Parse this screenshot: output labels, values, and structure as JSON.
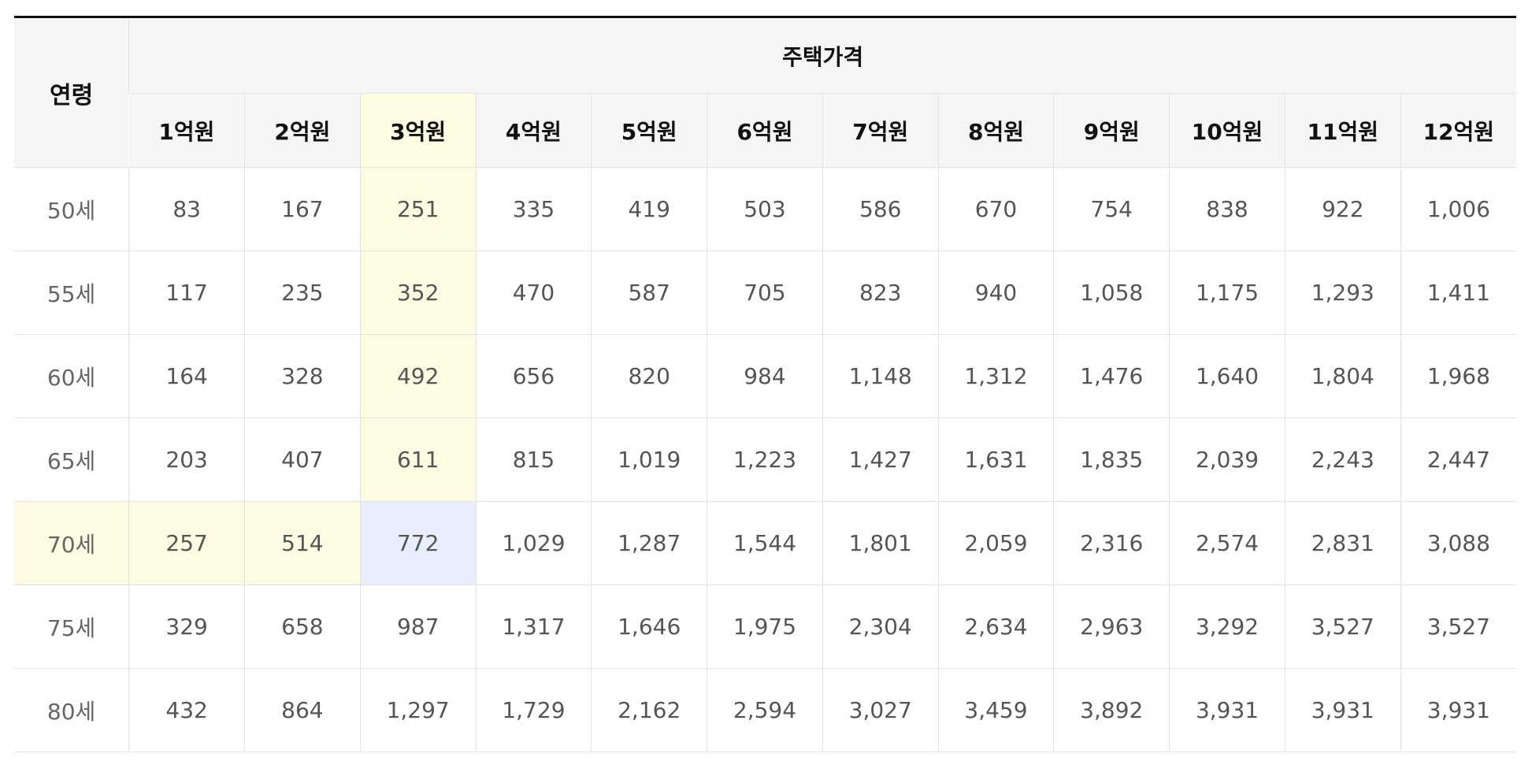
{
  "table": {
    "age_header": "연령",
    "price_header": "주택가격",
    "price_columns": [
      "1억원",
      "2억원",
      "3억원",
      "4억원",
      "5억원",
      "6억원",
      "7억원",
      "8억원",
      "9억원",
      "10억원",
      "11억원",
      "12억원"
    ],
    "rows": [
      {
        "age": "50세",
        "values": [
          "83",
          "167",
          "251",
          "335",
          "419",
          "503",
          "586",
          "670",
          "754",
          "838",
          "922",
          "1,006"
        ]
      },
      {
        "age": "55세",
        "values": [
          "117",
          "235",
          "352",
          "470",
          "587",
          "705",
          "823",
          "940",
          "1,058",
          "1,175",
          "1,293",
          "1,411"
        ]
      },
      {
        "age": "60세",
        "values": [
          "164",
          "328",
          "492",
          "656",
          "820",
          "984",
          "1,148",
          "1,312",
          "1,476",
          "1,640",
          "1,804",
          "1,968"
        ]
      },
      {
        "age": "65세",
        "values": [
          "203",
          "407",
          "611",
          "815",
          "1,019",
          "1,223",
          "1,427",
          "1,631",
          "1,835",
          "2,039",
          "2,243",
          "2,447"
        ]
      },
      {
        "age": "70세",
        "values": [
          "257",
          "514",
          "772",
          "1,029",
          "1,287",
          "1,544",
          "1,801",
          "2,059",
          "2,316",
          "2,574",
          "2,831",
          "3,088"
        ]
      },
      {
        "age": "75세",
        "values": [
          "329",
          "658",
          "987",
          "1,317",
          "1,646",
          "1,975",
          "2,304",
          "2,634",
          "2,963",
          "3,292",
          "3,527",
          "3,527"
        ]
      },
      {
        "age": "80세",
        "values": [
          "432",
          "864",
          "1,297",
          "1,729",
          "2,162",
          "2,594",
          "3,027",
          "3,459",
          "3,892",
          "3,931",
          "3,931",
          "3,931"
        ]
      }
    ]
  },
  "colors": {
    "highlight_yellow": "#fdfbe1",
    "highlight_blue": "#e8eefb"
  }
}
